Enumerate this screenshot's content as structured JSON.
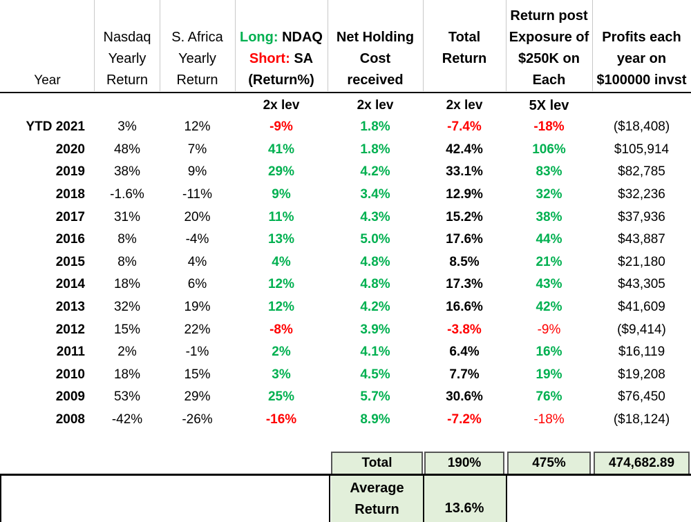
{
  "headers": {
    "year": "Year",
    "nasdaq": [
      "Nasdaq",
      "Yearly",
      "Return"
    ],
    "safrica": [
      "S. Africa",
      "Yearly",
      "Return"
    ],
    "longshort": {
      "long_label": "Long:",
      "long_val": " NDAQ",
      "short_label": "Short:",
      "short_val": " SA",
      "line3": "(Return%)"
    },
    "holding": [
      "Net Holding",
      "Cost",
      "received"
    ],
    "total": [
      "Total",
      "Return"
    ],
    "exposure": [
      "Return post",
      "Exposure of",
      "$250K on",
      "Each"
    ],
    "profits": [
      "Profits each",
      "year on",
      "$100000 invst"
    ]
  },
  "sublabels": {
    "longshort": "2x lev",
    "holding": "2x lev",
    "total": "2x lev",
    "exposure": "5X lev"
  },
  "colors": {
    "green": "#00b050",
    "red": "#ff0000",
    "total_fill": "#e2efda"
  },
  "rows": [
    {
      "year": "YTD 2021",
      "nasdaq": "3%",
      "sa": "12%",
      "ls": "-9%",
      "ls_c": "red",
      "hold": "1.8%",
      "tot": "-7.4%",
      "tot_c": "red",
      "exp": "-18%",
      "exp_c": "red",
      "exp_b": true,
      "profit": "($18,408)"
    },
    {
      "year": "2020",
      "nasdaq": "48%",
      "sa": "7%",
      "ls": "41%",
      "ls_c": "green",
      "hold": "1.8%",
      "tot": "42.4%",
      "tot_c": "black",
      "exp": "106%",
      "exp_c": "green",
      "exp_b": true,
      "profit": "$105,914"
    },
    {
      "year": "2019",
      "nasdaq": "38%",
      "sa": "9%",
      "ls": "29%",
      "ls_c": "green",
      "hold": "4.2%",
      "tot": "33.1%",
      "tot_c": "black",
      "exp": "83%",
      "exp_c": "green",
      "exp_b": true,
      "profit": "$82,785"
    },
    {
      "year": "2018",
      "nasdaq": "-1.6%",
      "sa": "-11%",
      "ls": "9%",
      "ls_c": "green",
      "hold": "3.4%",
      "tot": "12.9%",
      "tot_c": "black",
      "exp": "32%",
      "exp_c": "green",
      "exp_b": true,
      "profit": "$32,236"
    },
    {
      "year": "2017",
      "nasdaq": "31%",
      "sa": "20%",
      "ls": "11%",
      "ls_c": "green",
      "hold": "4.3%",
      "tot": "15.2%",
      "tot_c": "black",
      "exp": "38%",
      "exp_c": "green",
      "exp_b": true,
      "profit": "$37,936"
    },
    {
      "year": "2016",
      "nasdaq": "8%",
      "sa": "-4%",
      "ls": "13%",
      "ls_c": "green",
      "hold": "5.0%",
      "tot": "17.6%",
      "tot_c": "black",
      "exp": "44%",
      "exp_c": "green",
      "exp_b": true,
      "profit": "$43,887"
    },
    {
      "year": "2015",
      "nasdaq": "8%",
      "sa": "4%",
      "ls": "4%",
      "ls_c": "green",
      "hold": "4.8%",
      "tot": "8.5%",
      "tot_c": "black",
      "exp": "21%",
      "exp_c": "green",
      "exp_b": true,
      "profit": "$21,180"
    },
    {
      "year": "2014",
      "nasdaq": "18%",
      "sa": "6%",
      "ls": "12%",
      "ls_c": "green",
      "hold": "4.8%",
      "tot": "17.3%",
      "tot_c": "black",
      "exp": "43%",
      "exp_c": "green",
      "exp_b": true,
      "profit": "$43,305"
    },
    {
      "year": "2013",
      "nasdaq": "32%",
      "sa": "19%",
      "ls": "12%",
      "ls_c": "green",
      "hold": "4.2%",
      "tot": "16.6%",
      "tot_c": "black",
      "exp": "42%",
      "exp_c": "green",
      "exp_b": true,
      "profit": "$41,609"
    },
    {
      "year": "2012",
      "nasdaq": "15%",
      "sa": "22%",
      "ls": "-8%",
      "ls_c": "red",
      "hold": "3.9%",
      "tot": "-3.8%",
      "tot_c": "red",
      "exp": "-9%",
      "exp_c": "red",
      "exp_b": false,
      "profit": "($9,414)"
    },
    {
      "year": "2011",
      "nasdaq": "2%",
      "sa": "-1%",
      "ls": "2%",
      "ls_c": "green",
      "hold": "4.1%",
      "tot": "6.4%",
      "tot_c": "black",
      "exp": "16%",
      "exp_c": "green",
      "exp_b": true,
      "profit": "$16,119"
    },
    {
      "year": "2010",
      "nasdaq": "18%",
      "sa": "15%",
      "ls": "3%",
      "ls_c": "green",
      "hold": "4.5%",
      "tot": "7.7%",
      "tot_c": "black",
      "exp": "19%",
      "exp_c": "green",
      "exp_b": true,
      "profit": "$19,208"
    },
    {
      "year": "2009",
      "nasdaq": "53%",
      "sa": "29%",
      "ls": "25%",
      "ls_c": "green",
      "hold": "5.7%",
      "tot": "30.6%",
      "tot_c": "black",
      "exp": "76%",
      "exp_c": "green",
      "exp_b": true,
      "profit": "$76,450"
    },
    {
      "year": "2008",
      "nasdaq": "-42%",
      "sa": "-26%",
      "ls": "-16%",
      "ls_c": "red",
      "hold": "8.9%",
      "tot": "-7.2%",
      "tot_c": "red",
      "exp": "-18%",
      "exp_c": "red",
      "exp_b": false,
      "profit": "($18,124)"
    }
  ],
  "totals": {
    "label": "Total",
    "total_return": "190%",
    "exposure": "475%",
    "profits": "474,682.89"
  },
  "average": {
    "label_line1": "Average",
    "label_line2": "Return",
    "value": "13.6%"
  }
}
